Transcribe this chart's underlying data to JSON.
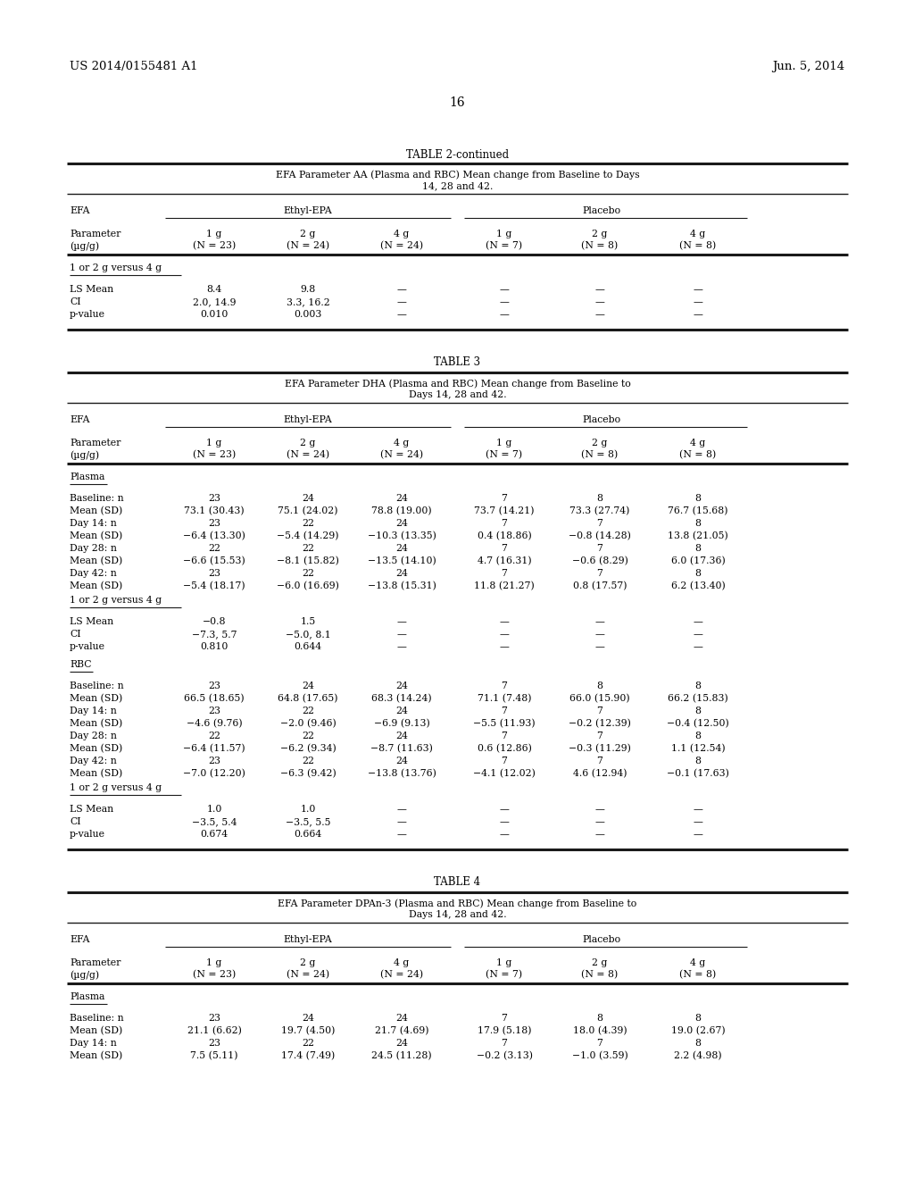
{
  "header_left": "US 2014/0155481 A1",
  "header_right": "Jun. 5, 2014",
  "page_number": "16",
  "table2_continued_title": "TABLE 2-continued",
  "table2_subtitle": "EFA Parameter AA (Plasma and RBC) Mean change from Baseline to Days\n14, 28 and 42.",
  "table3_title": "TABLE 3",
  "table3_subtitle": "EFA Parameter DHA (Plasma and RBC) Mean change from Baseline to\nDays 14, 28 and 42.",
  "table4_title": "TABLE 4",
  "table4_subtitle": "EFA Parameter DPAn-3 (Plasma and RBC) Mean change from Baseline to\nDays 14, 28 and 42.",
  "ethyl_epa": "Ethyl-EPA",
  "placebo": "Placebo",
  "col_labels_line1": [
    "Parameter",
    "1 g",
    "2 g",
    "4 g",
    "1 g",
    "2 g",
    "4 g"
  ],
  "col_labels_line2": [
    "µg/g)",
    "(N = 23)",
    "(N = 24)",
    "(N = 24)",
    "(N = 7)",
    "(N = 8)",
    "(N = 8)"
  ],
  "col_labels_line2_full": [
    "(µg/g)",
    "(N = 23)",
    "(N = 24)",
    "(N = 24)",
    "(N = 7)",
    "(N = 8)",
    "(N = 8)"
  ],
  "table2_section": "1 or 2 g versus 4 g",
  "table2_rows": [
    [
      "LS Mean",
      "8.4",
      "9.8",
      "—",
      "—",
      "—",
      "—"
    ],
    [
      "CI",
      "2.0, 14.9",
      "3.3, 16.2",
      "—",
      "—",
      "—",
      "—"
    ],
    [
      "p-value",
      "0.010",
      "0.003",
      "—",
      "—",
      "—",
      "—"
    ]
  ],
  "table3_plasma_rows": [
    [
      "Baseline: n",
      "23",
      "24",
      "24",
      "7",
      "8",
      "8"
    ],
    [
      "Mean (SD)",
      "73.1 (30.43)",
      "75.1 (24.02)",
      "78.8 (19.00)",
      "73.7 (14.21)",
      "73.3 (27.74)",
      "76.7 (15.68)"
    ],
    [
      "Day 14: n",
      "23",
      "22",
      "24",
      "7",
      "7",
      "8"
    ],
    [
      "Mean (SD)",
      "−6.4 (13.30)",
      "−5.4 (14.29)",
      "−10.3 (13.35)",
      "0.4 (18.86)",
      "−0.8 (14.28)",
      "13.8 (21.05)"
    ],
    [
      "Day 28: n",
      "22",
      "22",
      "24",
      "7",
      "7",
      "8"
    ],
    [
      "Mean (SD)",
      "−6.6 (15.53)",
      "−8.1 (15.82)",
      "−13.5 (14.10)",
      "4.7 (16.31)",
      "−0.6 (8.29)",
      "6.0 (17.36)"
    ],
    [
      "Day 42: n",
      "23",
      "22",
      "24",
      "7",
      "7",
      "8"
    ],
    [
      "Mean (SD)",
      "−5.4 (18.17)",
      "−6.0 (16.69)",
      "−13.8 (15.31)",
      "11.8 (21.27)",
      "0.8 (17.57)",
      "6.2 (13.40)"
    ]
  ],
  "table3_plasma_section": "1 or 2 g versus 4 g",
  "table3_plasma_stats": [
    [
      "LS Mean",
      "−0.8",
      "1.5",
      "—",
      "—",
      "—",
      "—"
    ],
    [
      "CI",
      "−7.3, 5.7",
      "−5.0, 8.1",
      "—",
      "—",
      "—",
      "—"
    ],
    [
      "p-value",
      "0.810",
      "0.644",
      "—",
      "—",
      "—",
      "—"
    ]
  ],
  "table3_rbc_rows": [
    [
      "Baseline: n",
      "23",
      "24",
      "24",
      "7",
      "8",
      "8"
    ],
    [
      "Mean (SD)",
      "66.5 (18.65)",
      "64.8 (17.65)",
      "68.3 (14.24)",
      "71.1 (7.48)",
      "66.0 (15.90)",
      "66.2 (15.83)"
    ],
    [
      "Day 14: n",
      "23",
      "22",
      "24",
      "7",
      "7",
      "8"
    ],
    [
      "Mean (SD)",
      "−4.6 (9.76)",
      "−2.0 (9.46)",
      "−6.9 (9.13)",
      "−5.5 (11.93)",
      "−0.2 (12.39)",
      "−0.4 (12.50)"
    ],
    [
      "Day 28: n",
      "22",
      "22",
      "24",
      "7",
      "7",
      "8"
    ],
    [
      "Mean (SD)",
      "−6.4 (11.57)",
      "−6.2 (9.34)",
      "−8.7 (11.63)",
      "0.6 (12.86)",
      "−0.3 (11.29)",
      "1.1 (12.54)"
    ],
    [
      "Day 42: n",
      "23",
      "22",
      "24",
      "7",
      "7",
      "8"
    ],
    [
      "Mean (SD)",
      "−7.0 (12.20)",
      "−6.3 (9.42)",
      "−13.8 (13.76)",
      "−4.1 (12.02)",
      "4.6 (12.94)",
      "−0.1 (17.63)"
    ]
  ],
  "table3_rbc_section": "1 or 2 g versus 4 g",
  "table3_rbc_stats": [
    [
      "LS Mean",
      "1.0",
      "1.0",
      "—",
      "—",
      "—",
      "—"
    ],
    [
      "CI",
      "−3.5, 5.4",
      "−3.5, 5.5",
      "—",
      "—",
      "—",
      "—"
    ],
    [
      "p-value",
      "0.674",
      "0.664",
      "—",
      "—",
      "—",
      "—"
    ]
  ],
  "table4_plasma_rows": [
    [
      "Baseline: n",
      "23",
      "24",
      "24",
      "7",
      "8",
      "8"
    ],
    [
      "Mean (SD)",
      "21.1 (6.62)",
      "19.7 (4.50)",
      "21.7 (4.69)",
      "17.9 (5.18)",
      "18.0 (4.39)",
      "19.0 (2.67)"
    ],
    [
      "Day 14: n",
      "23",
      "22",
      "24",
      "7",
      "7",
      "8"
    ],
    [
      "Mean (SD)",
      "7.5 (5.11)",
      "17.4 (7.49)",
      "24.5 (11.28)",
      "−0.2 (3.13)",
      "−1.0 (3.59)",
      "2.2 (4.98)"
    ]
  ],
  "bg_color": "#f0f0f0",
  "text_color": "#1a1a1a",
  "line_color": "#1a1a1a"
}
